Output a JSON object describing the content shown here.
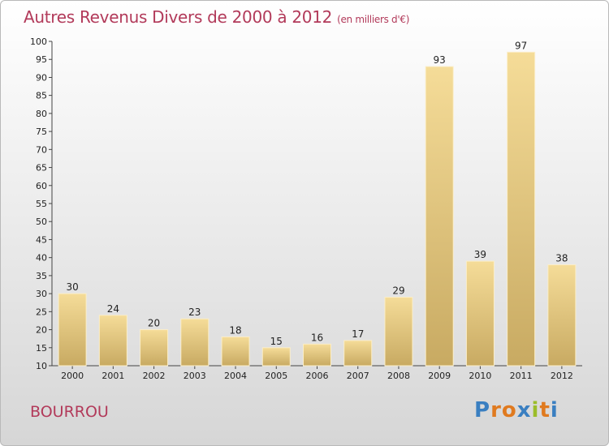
{
  "title": "Autres Revenus Divers de 2000 à 2012",
  "unit": "(en milliers d'€)",
  "place": "BOURROU",
  "logo": {
    "letters": [
      "P",
      "r",
      "o",
      "x",
      "i",
      "t",
      "i"
    ],
    "colors": [
      "#3a7fc1",
      "#e07a1f",
      "#e07a1f",
      "#3a7fc1",
      "#9bbd2a",
      "#e07a1f",
      "#3a7fc1"
    ]
  },
  "colors": {
    "bar_light": "#f5dc98",
    "bar_dark": "#c8aa62",
    "accent": "#b23a5a"
  },
  "chart_data": {
    "type": "bar",
    "title": "Autres Revenus Divers de 2000 à 2012",
    "categories": [
      "2000",
      "2001",
      "2002",
      "2003",
      "2004",
      "2005",
      "2006",
      "2007",
      "2008",
      "2009",
      "2010",
      "2011",
      "2012"
    ],
    "values": [
      30,
      24,
      20,
      23,
      18,
      15,
      16,
      17,
      29,
      93,
      39,
      97,
      38
    ],
    "ylim": [
      10,
      100
    ],
    "yticks": [
      10,
      15,
      20,
      25,
      30,
      35,
      40,
      45,
      50,
      55,
      60,
      65,
      70,
      75,
      80,
      85,
      90,
      95,
      100
    ],
    "xlabel": "",
    "ylabel": "",
    "grid": false,
    "legend": "none"
  }
}
